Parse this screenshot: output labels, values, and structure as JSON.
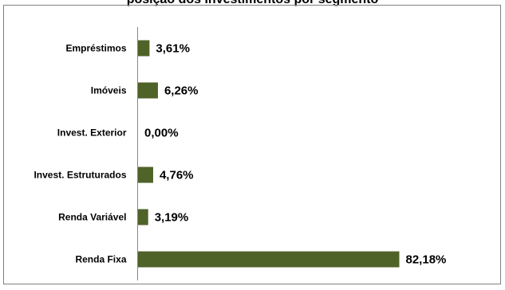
{
  "chart_data": {
    "type": "bar",
    "orientation": "horizontal",
    "title": "posição dos Investimentos por segmento",
    "categories": [
      "Empréstimos",
      "Imóveis",
      "Invest. Exterior",
      "Invest. Estruturados",
      "Renda Variável",
      "Renda Fixa"
    ],
    "values": [
      3.61,
      6.26,
      0.0,
      4.76,
      3.19,
      82.18
    ],
    "value_labels": [
      "3,61%",
      "6,26%",
      "0,00%",
      "4,76%",
      "3,19%",
      "82,18%"
    ],
    "xlim": [
      0,
      100
    ],
    "grid": false,
    "legend": "none",
    "bar_color": "#4f6228"
  }
}
